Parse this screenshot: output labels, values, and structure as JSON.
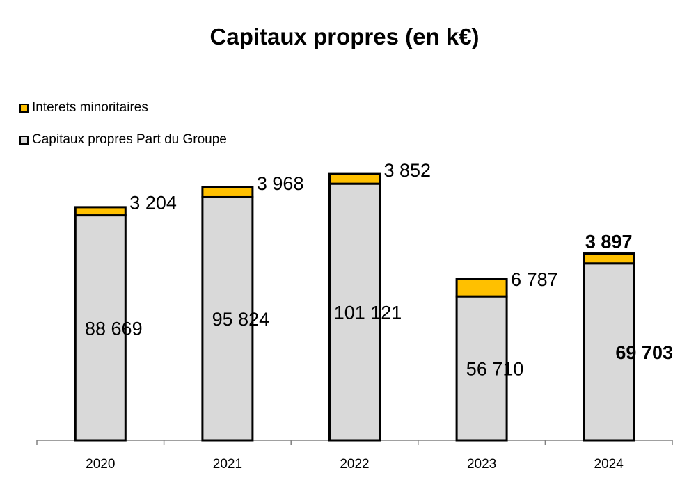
{
  "chart_data": {
    "type": "bar",
    "stacked": true,
    "title": "Capitaux propres (en k€)",
    "categories": [
      "2020",
      "2021",
      "2022",
      "2023",
      "2024"
    ],
    "series": [
      {
        "name": "Capitaux propres Part du Groupe",
        "values": [
          88669,
          95824,
          101121,
          56710,
          69703
        ],
        "labels": [
          "88 669",
          "95 824",
          "101 121",
          "56 710",
          "69 703"
        ],
        "color": "#d9d9d9"
      },
      {
        "name": "Interets minoritaires",
        "values": [
          3204,
          3968,
          3852,
          6787,
          3897
        ],
        "labels": [
          "3 204",
          "3 968",
          "3 852",
          "6 787",
          "3 897"
        ],
        "color": "#ffc000"
      }
    ],
    "legend_position": "top-left",
    "grid": false,
    "ylim": [
      0,
      105000
    ],
    "xlabel": "",
    "ylabel": ""
  }
}
